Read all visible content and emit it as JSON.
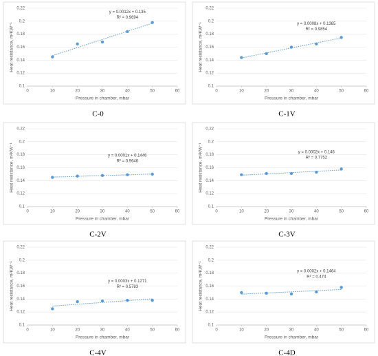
{
  "chart_data": [
    {
      "type": "scatter",
      "caption": "C-0",
      "x": [
        10,
        20,
        30,
        40,
        50
      ],
      "values": [
        0.145,
        0.165,
        0.168,
        0.184,
        0.198
      ],
      "color": "#5b9bd5",
      "trendline": true,
      "equation": "y = 0.0012x + 0.135",
      "r_squared": "R² = 0.9694",
      "xlabel": "Pressure in chamber, mbar",
      "ylabel": "Heat resistance, m²KW⁻¹",
      "xlim": [
        0,
        60
      ],
      "ylim": [
        0.1,
        0.22
      ],
      "xticks": [
        0,
        10,
        20,
        30,
        40,
        50,
        60
      ],
      "yticks": [
        0.1,
        0.12,
        0.14,
        0.16,
        0.18,
        0.2,
        0.22
      ],
      "grid": true
    },
    {
      "type": "scatter",
      "caption": "C-1V",
      "x": [
        10,
        20,
        30,
        40,
        50
      ],
      "values": [
        0.144,
        0.15,
        0.16,
        0.165,
        0.175
      ],
      "color": "#5b9bd5",
      "trendline": true,
      "equation": "y = 0.0008x + 0.1365",
      "r_squared": "R² = 0.9854",
      "xlabel": "Pressure in chamber, mbar",
      "ylabel": "Heat resistance, m²KW⁻¹",
      "xlim": [
        0,
        60
      ],
      "ylim": [
        0.1,
        0.22
      ],
      "xticks": [
        0,
        10,
        20,
        30,
        40,
        50,
        60
      ],
      "yticks": [
        0.1,
        0.12,
        0.14,
        0.16,
        0.18,
        0.2,
        0.22
      ],
      "grid": true
    },
    {
      "type": "scatter",
      "caption": "C-2V",
      "x": [
        10,
        20,
        30,
        40,
        50
      ],
      "values": [
        0.145,
        0.147,
        0.148,
        0.149,
        0.15
      ],
      "color": "#5b9bd5",
      "trendline": true,
      "equation": "y = 0.0001x + 0.1446",
      "r_squared": "R² = 0.9646",
      "xlabel": "Pressure in chamber, mbar",
      "ylabel": "Heat resistance, m²KW⁻¹",
      "xlim": [
        0,
        60
      ],
      "ylim": [
        0.1,
        0.22
      ],
      "xticks": [
        0,
        10,
        20,
        30,
        40,
        50,
        60
      ],
      "yticks": [
        0.1,
        0.12,
        0.14,
        0.16,
        0.18,
        0.2,
        0.22
      ],
      "grid": true
    },
    {
      "type": "scatter",
      "caption": "C-3V",
      "x": [
        10,
        20,
        30,
        40,
        50
      ],
      "values": [
        0.149,
        0.151,
        0.151,
        0.153,
        0.158
      ],
      "color": "#5b9bd5",
      "trendline": true,
      "equation": "y = 0.0002x + 0.146",
      "r_squared": "R² = 0.7752",
      "xlabel": "Pressure in chamber, mbar",
      "ylabel": "Heat resistance, m²KW⁻¹",
      "xlim": [
        0,
        60
      ],
      "ylim": [
        0.1,
        0.22
      ],
      "xticks": [
        0,
        10,
        20,
        30,
        40,
        50,
        60
      ],
      "yticks": [
        0.1,
        0.12,
        0.14,
        0.16,
        0.18,
        0.2,
        0.22
      ],
      "grid": true
    },
    {
      "type": "scatter",
      "caption": "C-4V",
      "x": [
        10,
        20,
        30,
        40,
        50
      ],
      "values": [
        0.125,
        0.136,
        0.137,
        0.138,
        0.138
      ],
      "color": "#5b9bd5",
      "trendline": true,
      "equation": "y = 0.0003x + 0.1271",
      "r_squared": "R² = 0.5783",
      "xlabel": "Pressure in chamber, mbar",
      "ylabel": "Heat resistance, m²KW⁻¹",
      "xlim": [
        0,
        60
      ],
      "ylim": [
        0.1,
        0.22
      ],
      "xticks": [
        0,
        10,
        20,
        30,
        40,
        50,
        60
      ],
      "yticks": [
        0.1,
        0.12,
        0.14,
        0.16,
        0.18,
        0.2,
        0.22
      ],
      "grid": true
    },
    {
      "type": "scatter",
      "caption": "C-4D",
      "x": [
        10,
        20,
        30,
        40,
        50
      ],
      "values": [
        0.15,
        0.149,
        0.148,
        0.151,
        0.158
      ],
      "color": "#5b9bd5",
      "trendline": true,
      "equation": "y = 0.0002x + 0.1464",
      "r_squared": "R² = 0.474",
      "xlabel": "Pressure in chamber, mbar",
      "ylabel": "Heat resistance, m²KW⁻¹",
      "xlim": [
        0,
        60
      ],
      "ylim": [
        0.1,
        0.22
      ],
      "xticks": [
        0,
        10,
        20,
        30,
        40,
        50,
        60
      ],
      "yticks": [
        0.1,
        0.12,
        0.14,
        0.16,
        0.18,
        0.2,
        0.22
      ],
      "grid": true
    }
  ]
}
